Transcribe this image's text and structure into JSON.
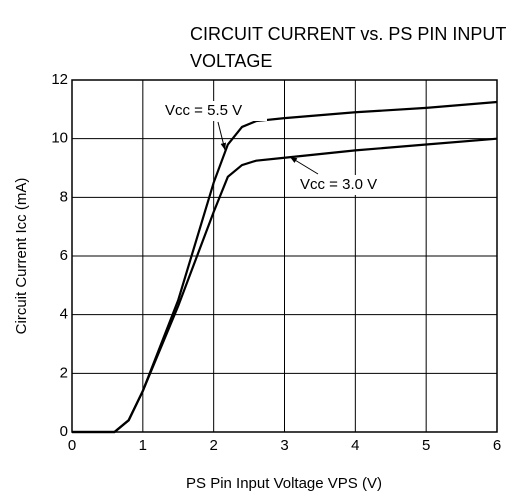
{
  "chart_data": {
    "type": "line",
    "title": "CIRCUIT CURRENT vs. PS PIN INPUT VOLTAGE",
    "xlabel": "PS Pin Input Voltage  VPS (V)",
    "ylabel": "Circuit Current  Icc (mA)",
    "x": [
      0,
      0.6,
      0.8,
      1,
      1.5,
      2,
      2.2,
      2.4,
      2.6,
      3,
      4,
      5,
      6
    ],
    "series": [
      {
        "name": "Vcc = 5.5 V",
        "color": "#000000",
        "values": [
          0,
          0,
          0.4,
          1.4,
          4.5,
          8.5,
          9.8,
          10.4,
          10.6,
          10.7,
          10.9,
          11.05,
          11.25
        ]
      },
      {
        "name": "Vcc = 3.0 V",
        "color": "#000000",
        "values": [
          0,
          0,
          0.4,
          1.4,
          4.3,
          7.5,
          8.7,
          9.1,
          9.25,
          9.35,
          9.6,
          9.8,
          10
        ]
      }
    ],
    "xlim": [
      0,
      6
    ],
    "xticks": [
      0,
      1,
      2,
      3,
      4,
      5,
      6
    ],
    "ylim": [
      0,
      12
    ],
    "yticks": [
      0,
      2,
      4,
      6,
      8,
      10,
      12
    ],
    "grid": true
  }
}
